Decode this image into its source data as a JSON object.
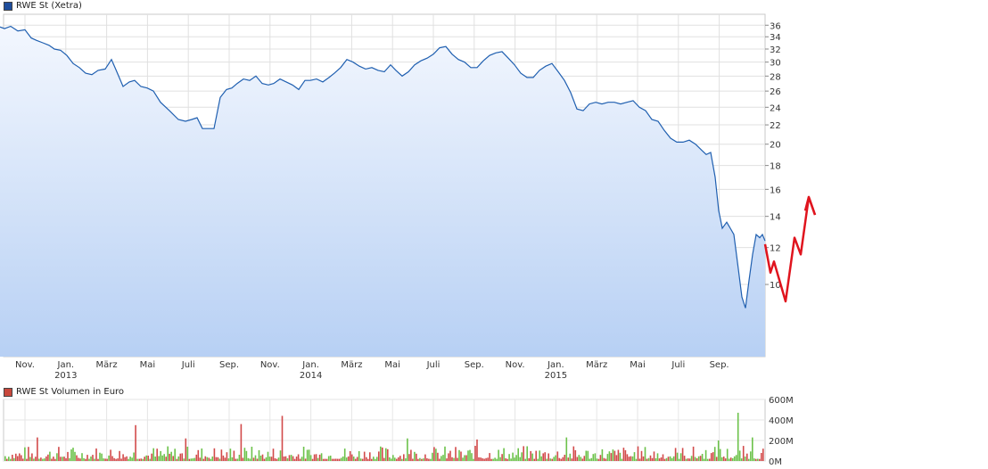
{
  "chart_data": [
    {
      "type": "area",
      "title": "RWE St (Xetra)",
      "legend": [
        {
          "label": "RWE St (Xetra)",
          "color": "#1f4e9c"
        }
      ],
      "y_ticks": [
        10,
        12,
        14,
        16,
        18,
        20,
        22,
        24,
        26,
        28,
        30,
        32,
        34,
        36
      ],
      "ylim": [
        7,
        38
      ],
      "x_tick_labels": [
        "Nov.",
        "Jan.",
        "März",
        "Mai",
        "Juli",
        "Sep.",
        "Nov.",
        "Jan.",
        "März",
        "Mai",
        "Juli",
        "Sep.",
        "Nov.",
        "Jan.",
        "März",
        "Mai",
        "Juli",
        "Sep."
      ],
      "x_year_labels": [
        {
          "under": 1,
          "label": "2013"
        },
        {
          "under": 7,
          "label": "2014"
        },
        {
          "under": 13,
          "label": "2015"
        }
      ],
      "grid": true,
      "series": [
        {
          "name": "RWE St (Xetra)",
          "color": "#1f5fb0",
          "x": [
            0,
            5,
            12,
            20,
            28,
            35,
            41,
            48,
            55,
            61,
            68,
            75,
            82,
            89,
            96,
            103,
            110,
            118,
            125,
            131,
            138,
            145,
            151,
            158,
            165,
            172,
            180,
            190,
            200,
            208,
            215,
            221,
            227,
            233,
            240,
            247,
            254,
            260,
            266,
            273,
            280,
            287,
            294,
            301,
            307,
            314,
            321,
            328,
            335,
            342,
            348,
            355,
            362,
            369,
            375,
            382,
            389,
            396,
            403,
            410,
            417,
            424,
            431,
            438,
            444,
            451,
            458,
            465,
            472,
            479,
            486,
            493,
            500,
            507,
            514,
            521,
            528,
            535,
            542,
            549,
            556,
            563,
            570,
            577,
            584,
            591,
            598,
            605,
            612,
            619,
            626,
            633,
            640,
            647,
            654,
            661,
            668,
            675,
            682,
            689,
            696,
            703,
            710,
            717,
            724,
            731,
            738,
            745,
            752,
            759,
            766,
            773,
            780,
            787,
            792,
            797,
            802,
            806,
            810,
            815,
            819,
            823,
            828,
            832,
            836,
            840,
            844,
            848,
            852,
            855,
            858
          ],
          "values": [
            35.7,
            35.4,
            35.8,
            35.0,
            35.2,
            33.8,
            33.4,
            33.0,
            32.6,
            32.0,
            31.8,
            31.0,
            29.8,
            29.2,
            28.4,
            28.2,
            28.8,
            29.0,
            30.4,
            28.6,
            26.6,
            27.2,
            27.4,
            26.6,
            26.4,
            26.0,
            24.6,
            23.6,
            22.6,
            22.4,
            22.6,
            22.8,
            21.6,
            21.6,
            21.6,
            25.2,
            26.2,
            26.4,
            27.0,
            27.6,
            27.4,
            28.0,
            27.0,
            26.8,
            27.0,
            27.6,
            27.2,
            26.8,
            26.2,
            27.4,
            27.4,
            27.6,
            27.2,
            27.8,
            28.4,
            29.2,
            30.4,
            30.0,
            29.4,
            29.0,
            29.2,
            28.8,
            28.6,
            29.6,
            28.8,
            28.0,
            28.6,
            29.6,
            30.2,
            30.6,
            31.2,
            32.2,
            32.4,
            31.2,
            30.4,
            30.0,
            29.2,
            29.2,
            30.2,
            31.0,
            31.4,
            31.6,
            30.6,
            29.6,
            28.4,
            27.8,
            27.8,
            28.8,
            29.4,
            29.8,
            28.6,
            27.4,
            25.8,
            23.8,
            23.6,
            24.4,
            24.6,
            24.4,
            24.6,
            24.6,
            24.4,
            24.6,
            24.8,
            24.0,
            23.6,
            22.6,
            22.4,
            21.4,
            20.6,
            20.2,
            20.2,
            20.4,
            20.0,
            19.4,
            19.0,
            19.2,
            17.0,
            14.4,
            13.2,
            13.6,
            13.2,
            12.8,
            10.8,
            9.4,
            8.9,
            10.2,
            11.6,
            12.8,
            12.6,
            12.8,
            12.4
          ]
        }
      ],
      "annotation": {
        "color": "#e0141e",
        "path": [
          [
            858,
            12.2
          ],
          [
            864,
            10.6
          ],
          [
            868,
            11.2
          ],
          [
            881,
            9.2
          ],
          [
            891,
            12.6
          ],
          [
            898,
            11.6
          ],
          [
            907,
            15.4
          ],
          [
            914,
            14.1
          ]
        ],
        "arrowhead": [
          [
            903,
            14.4
          ],
          [
            907,
            15.4
          ],
          [
            914,
            14.1
          ]
        ]
      }
    },
    {
      "type": "bar",
      "title": "RWE St Volumen in Euro",
      "legend": [
        {
          "label": "RWE St Volumen in Euro",
          "color": "#c8483c"
        }
      ],
      "y_ticks": [
        {
          "value": 0,
          "label": "0M"
        },
        {
          "value": 200,
          "label": "200M"
        },
        {
          "value": 400,
          "label": "400M"
        },
        {
          "value": 600,
          "label": "600M"
        }
      ],
      "ylim": [
        0,
        600
      ],
      "unit": "M Euro",
      "colors": {
        "up": "#6cc24a",
        "down": "#d24a4a"
      },
      "approx_bar_count": 425,
      "typical_range": [
        20,
        150
      ],
      "spikes": [
        {
          "x": 40,
          "value": 230
        },
        {
          "x": 150,
          "value": 350
        },
        {
          "x": 206,
          "value": 220
        },
        {
          "x": 268,
          "value": 360
        },
        {
          "x": 315,
          "value": 440
        },
        {
          "x": 455,
          "value": 220
        },
        {
          "x": 534,
          "value": 210
        },
        {
          "x": 634,
          "value": 230
        },
        {
          "x": 803,
          "value": 200
        },
        {
          "x": 825,
          "value": 470
        },
        {
          "x": 842,
          "value": 230
        }
      ]
    }
  ]
}
